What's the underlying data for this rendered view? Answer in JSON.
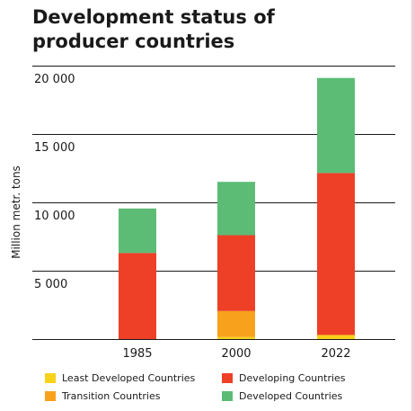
{
  "chart_data": {
    "type": "bar",
    "stacked": true,
    "title": "Development status of producer countries",
    "ylabel": "Million metr. tons",
    "xlabel": "",
    "categories": [
      "1985",
      "2000",
      "2022"
    ],
    "ylim": [
      0,
      20000
    ],
    "yticks": [
      5000,
      10000,
      15000,
      20000
    ],
    "ytick_labels": [
      "5 000",
      "10 000",
      "15 000",
      "20 000"
    ],
    "grid": true,
    "legend_position": "bottom",
    "series": [
      {
        "name": "Least Developed Countries",
        "color": "#f7d21a",
        "values": [
          0,
          150,
          300
        ]
      },
      {
        "name": "Transition Countries",
        "color": "#f7a11c",
        "values": [
          0,
          1900,
          0
        ]
      },
      {
        "name": "Developing Countries",
        "color": "#ee4027",
        "values": [
          6300,
          5550,
          11850
        ]
      },
      {
        "name": "Developed Countries",
        "color": "#5cbc76",
        "values": [
          3250,
          3900,
          6950
        ]
      }
    ]
  }
}
